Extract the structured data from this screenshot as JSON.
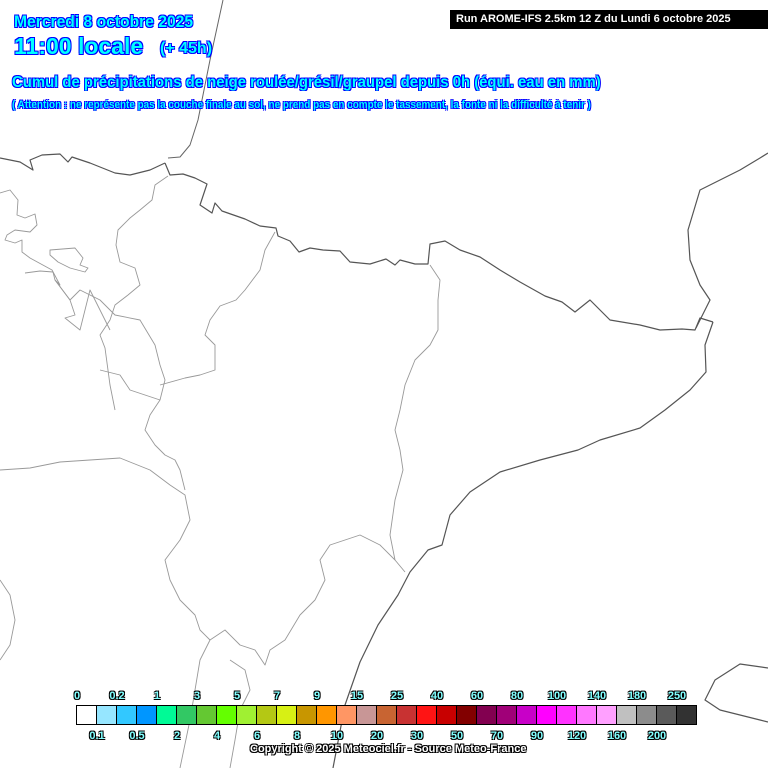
{
  "header": {
    "date": "Mercredi 8 octobre 2025",
    "time": "11:00 locale",
    "lead": "(+ 45h)",
    "run": "Run AROME-IFS 2.5km 12 Z du Lundi 6 octobre 2025",
    "title": "Cumul de précipitations de neige roulée/grésil/graupel depuis 0h (équi. eau en mm)",
    "warning": "( Attention : ne représente pas la couche finale au sol, ne prend pas en compte le tassement, la fonte ni la difficulté à tenir )"
  },
  "legend": {
    "labels": [
      "0",
      "0.1",
      "0.2",
      "0.5",
      "1",
      "2",
      "3",
      "4",
      "5",
      "6",
      "7",
      "8",
      "9",
      "10",
      "15",
      "20",
      "25",
      "30",
      "40",
      "50",
      "60",
      "70",
      "80",
      "90",
      "100",
      "120",
      "140",
      "160",
      "180",
      "200",
      "250"
    ],
    "colors": [
      "#ffffff",
      "#96e6ff",
      "#32c8ff",
      "#0096ff",
      "#00fa96",
      "#32c864",
      "#64c832",
      "#64ff00",
      "#a0f032",
      "#b4c814",
      "#d7f014",
      "#c89600",
      "#ff9600",
      "#ff9664",
      "#c89696",
      "#c86432",
      "#c83232",
      "#ff1414",
      "#c80000",
      "#820000",
      "#820050",
      "#a00078",
      "#c800c8",
      "#ff00ff",
      "#ff32ff",
      "#ff78ff",
      "#ffa0ff",
      "#c0c0c0",
      "#8c8c8c",
      "#5a5a5a",
      "#323232"
    ]
  },
  "copyright": "Copyright © 2025 Meteociel.fr - Source Meteo-France"
}
